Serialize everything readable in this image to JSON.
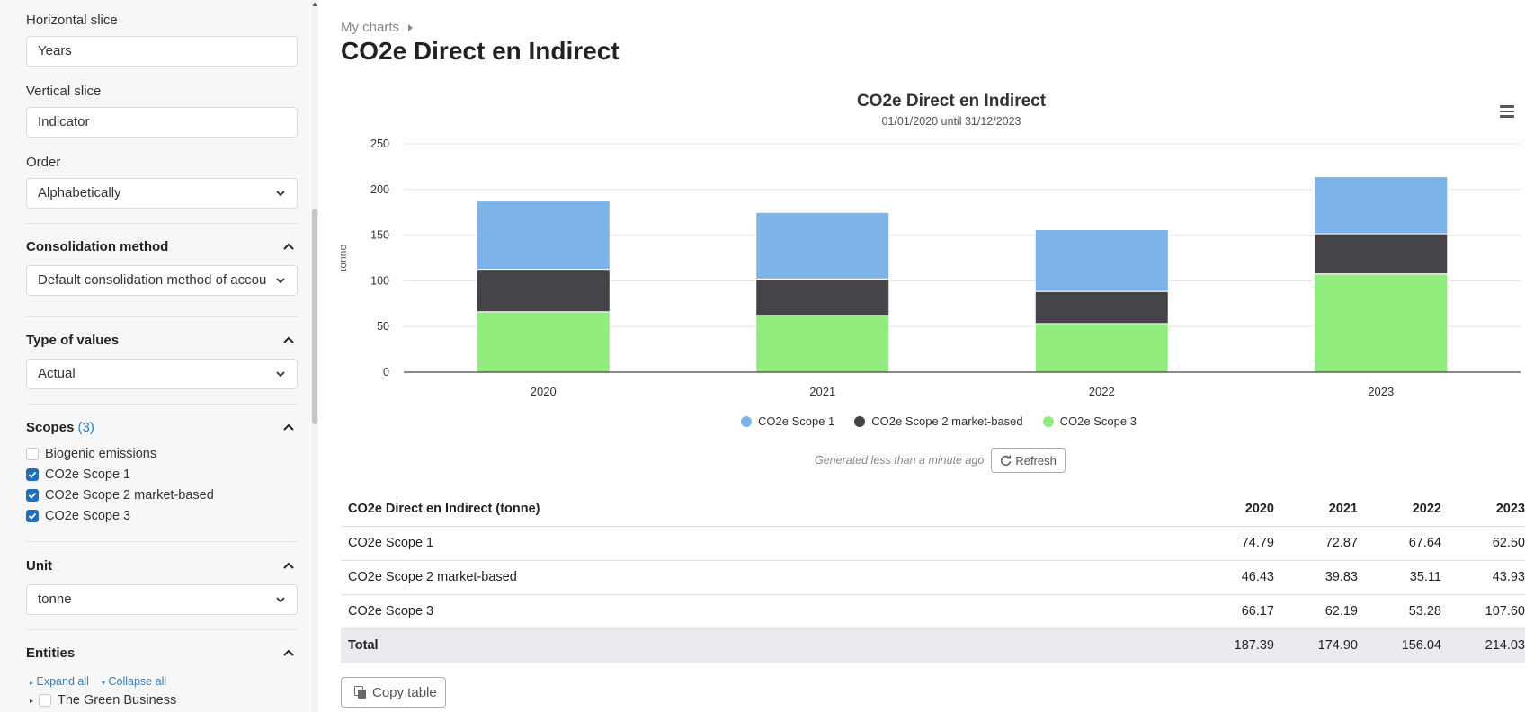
{
  "sidebar": {
    "horizontal_slice": {
      "label": "Horizontal slice",
      "value": "Years"
    },
    "vertical_slice": {
      "label": "Vertical slice",
      "value": "Indicator"
    },
    "order": {
      "label": "Order",
      "value": "Alphabetically"
    },
    "consolidation": {
      "title": "Consolidation method",
      "value": "Default consolidation method of accou"
    },
    "type_of_values": {
      "title": "Type of values",
      "value": "Actual"
    },
    "scopes": {
      "title": "Scopes",
      "count": "(3)",
      "items": [
        {
          "label": "Biogenic emissions",
          "checked": false
        },
        {
          "label": "CO2e Scope 1",
          "checked": true
        },
        {
          "label": "CO2e Scope 2 market-based",
          "checked": true
        },
        {
          "label": "CO2e Scope 3",
          "checked": true
        }
      ]
    },
    "unit": {
      "title": "Unit",
      "value": "tonne"
    },
    "entities": {
      "title": "Entities",
      "expand_all": "Expand all",
      "collapse_all": "Collapse all",
      "items": [
        {
          "label": "The Green Business",
          "checked": false
        }
      ]
    }
  },
  "breadcrumb": {
    "label": "My charts"
  },
  "page_title": "CO2e Direct en Indirect",
  "chart_data": {
    "type": "bar",
    "stacked": true,
    "title": "CO2e Direct en Indirect",
    "subtitle": "01/01/2020 until 31/12/2023",
    "ylabel": "tonne",
    "xlabel": "",
    "ylim": [
      0,
      250
    ],
    "yticks": [
      0,
      50,
      100,
      150,
      200,
      250
    ],
    "grid": true,
    "legend_position": "bottom",
    "categories": [
      "2020",
      "2021",
      "2022",
      "2023"
    ],
    "series": [
      {
        "name": "CO2e Scope 1",
        "color": "#7cb4ea",
        "values": [
          74.79,
          72.87,
          67.64,
          62.5
        ]
      },
      {
        "name": "CO2e Scope 2 market-based",
        "color": "#434348",
        "values": [
          46.43,
          39.83,
          35.11,
          43.93
        ]
      },
      {
        "name": "CO2e Scope 3",
        "color": "#90ed7d",
        "values": [
          66.17,
          62.19,
          53.28,
          107.6
        ]
      }
    ]
  },
  "generated": {
    "text": "Generated less than a minute ago",
    "refresh_label": "Refresh"
  },
  "table": {
    "header": "CO2e Direct en Indirect (tonne)",
    "columns": [
      "2020",
      "2021",
      "2022",
      "2023"
    ],
    "rows": [
      {
        "label": "CO2e Scope 1",
        "values": [
          "74.79",
          "72.87",
          "67.64",
          "62.50"
        ]
      },
      {
        "label": "CO2e Scope 2 market-based",
        "values": [
          "46.43",
          "39.83",
          "35.11",
          "43.93"
        ]
      },
      {
        "label": "CO2e Scope 3",
        "values": [
          "66.17",
          "62.19",
          "53.28",
          "107.60"
        ]
      }
    ],
    "total": {
      "label": "Total",
      "values": [
        "187.39",
        "174.90",
        "156.04",
        "214.03"
      ]
    }
  },
  "copy_table_label": "Copy table"
}
